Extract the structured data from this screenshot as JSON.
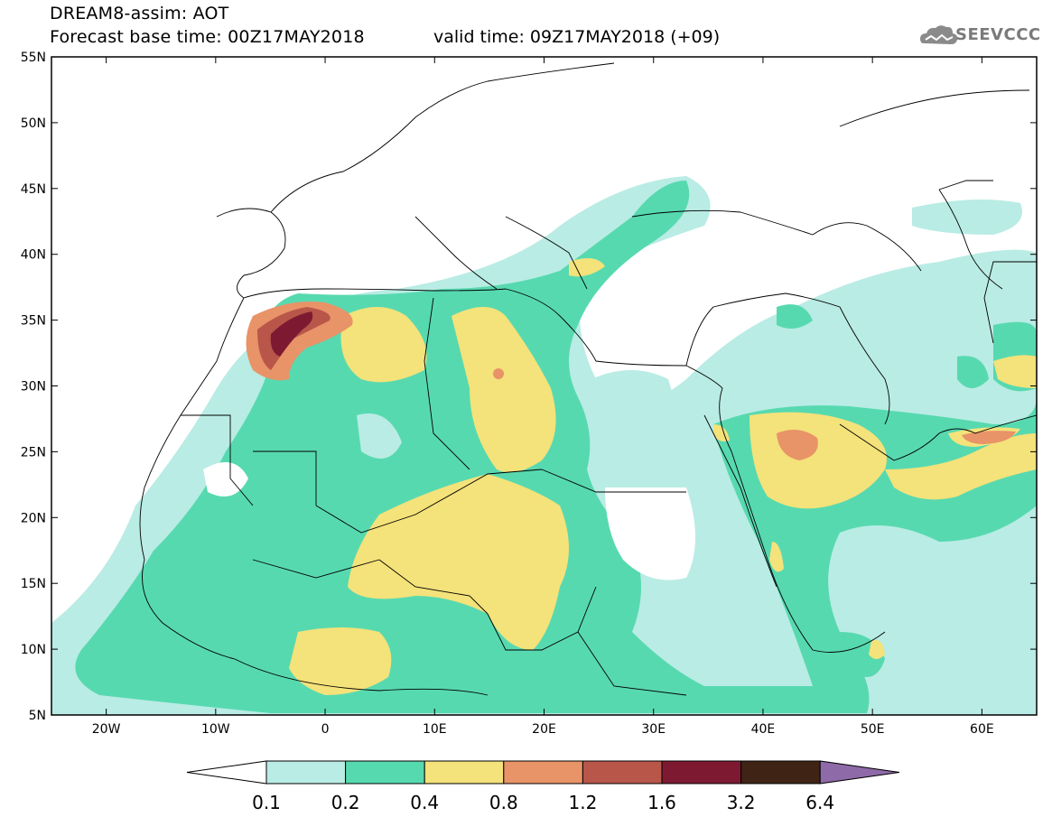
{
  "header": {
    "title_line1": "DREAM8-assim: AOT",
    "title_line2": "Forecast base time: 00Z17MAY2018",
    "valid_time": "valid time: 09Z17MAY2018 (+09)",
    "logo_text": "SEEVCCC"
  },
  "map": {
    "lon_labels": [
      "20W",
      "10W",
      "0",
      "10E",
      "20E",
      "30E",
      "40E",
      "50E",
      "60E"
    ],
    "lat_labels": [
      "55N",
      "50N",
      "45N",
      "40N",
      "35N",
      "30N",
      "25N",
      "20N",
      "15N",
      "10N",
      "5N"
    ],
    "lon_range": [
      -25,
      65
    ],
    "lat_range": [
      5,
      55
    ]
  },
  "colorbar": {
    "thresholds": [
      "0.1",
      "0.2",
      "0.4",
      "0.8",
      "1.2",
      "1.6",
      "3.2",
      "6.4"
    ],
    "colors": [
      "#ffffff",
      "#b9ece4",
      "#57d9b0",
      "#f4e27a",
      "#e89368",
      "#b9564a",
      "#7d1a32",
      "#3f2416",
      "#8e6aa8"
    ]
  }
}
